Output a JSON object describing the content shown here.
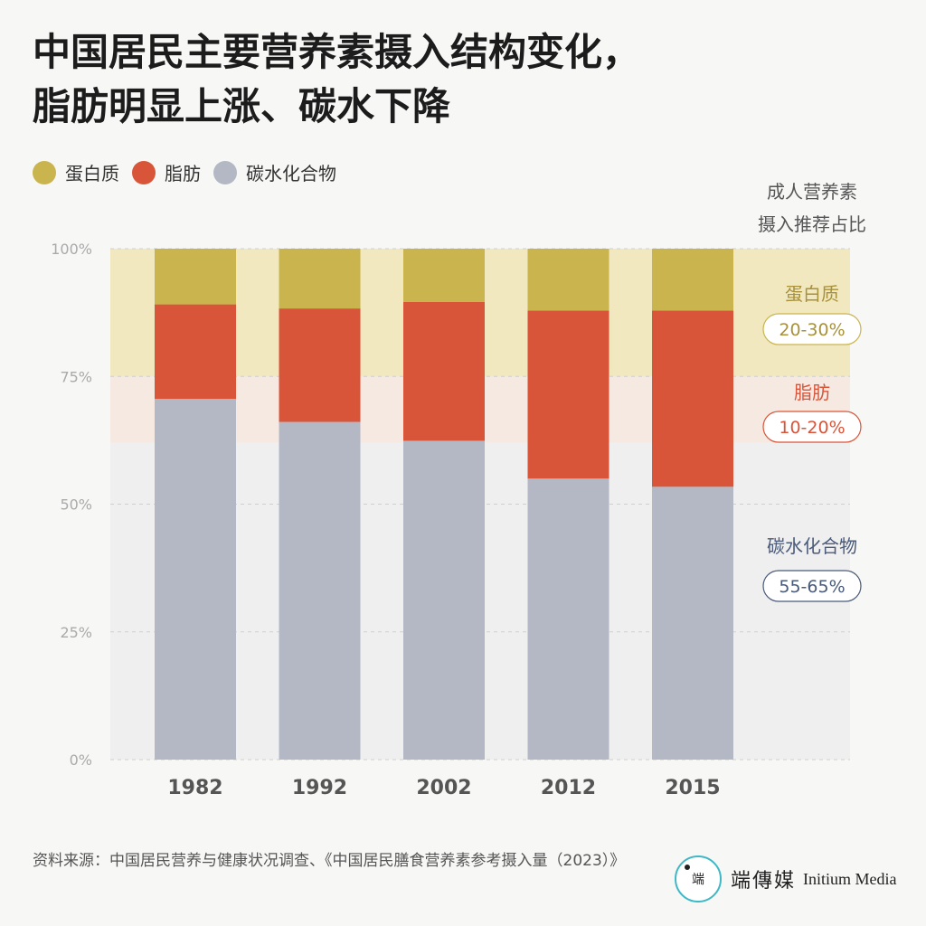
{
  "title": {
    "line1": "中国居民主要营养素摄入结构变化，",
    "line2": "脂肪明显上涨、碳水下降"
  },
  "legend": [
    {
      "label": "蛋白质",
      "color": "#c9b44e"
    },
    {
      "label": "脂肪",
      "color": "#d9553a"
    },
    {
      "label": "碳水化合物",
      "color": "#b3b8c4"
    }
  ],
  "recommendation": {
    "heading_line1": "成人营养素",
    "heading_line2": "摄入推荐占比",
    "protein": {
      "label": "蛋白质",
      "range": "20-30%",
      "low": 75,
      "high": 100,
      "band_color": "#f1e8bf",
      "text_color": "#a8913a",
      "border_color": "#c9b44e"
    },
    "fat": {
      "label": "脂肪",
      "range": "10-20%",
      "low": 62,
      "high": 75,
      "band_color": "#f5e9e2",
      "text_color": "#d9553a",
      "border_color": "#d9553a"
    },
    "carb": {
      "label": "碳水化合物",
      "range": "55-65%",
      "low": 0,
      "high": 62,
      "band_color": "#efeff0",
      "text_color": "#4a5a7a",
      "border_color": "#4a5a7a"
    }
  },
  "chart_data": {
    "type": "bar",
    "stacked": true,
    "categories": [
      "1982",
      "1992",
      "2002",
      "2012",
      "2015"
    ],
    "series": [
      {
        "name": "碳水化合物",
        "color": "#b3b8c4",
        "values": [
          70.6,
          66.1,
          62.4,
          55.0,
          53.4
        ]
      },
      {
        "name": "脂肪",
        "color": "#d9553a",
        "values": [
          18.5,
          22.2,
          27.2,
          32.9,
          34.5
        ]
      },
      {
        "name": "蛋白质",
        "color": "#c9b44e",
        "values": [
          10.9,
          11.7,
          10.4,
          12.1,
          12.1
        ]
      }
    ],
    "yticks": [
      "0%",
      "25%",
      "50%",
      "75%",
      "100%"
    ],
    "ytick_values": [
      0,
      25,
      50,
      75,
      100
    ],
    "ylim": [
      0,
      100
    ]
  },
  "footer": {
    "source": "资料来源：中国居民营养与健康状况调查、《中国居民膳食营养素参考摄入量（2023）》",
    "logo_cn": "端傳媒",
    "logo_en": "Initium Media",
    "logo_glyph": "端"
  }
}
